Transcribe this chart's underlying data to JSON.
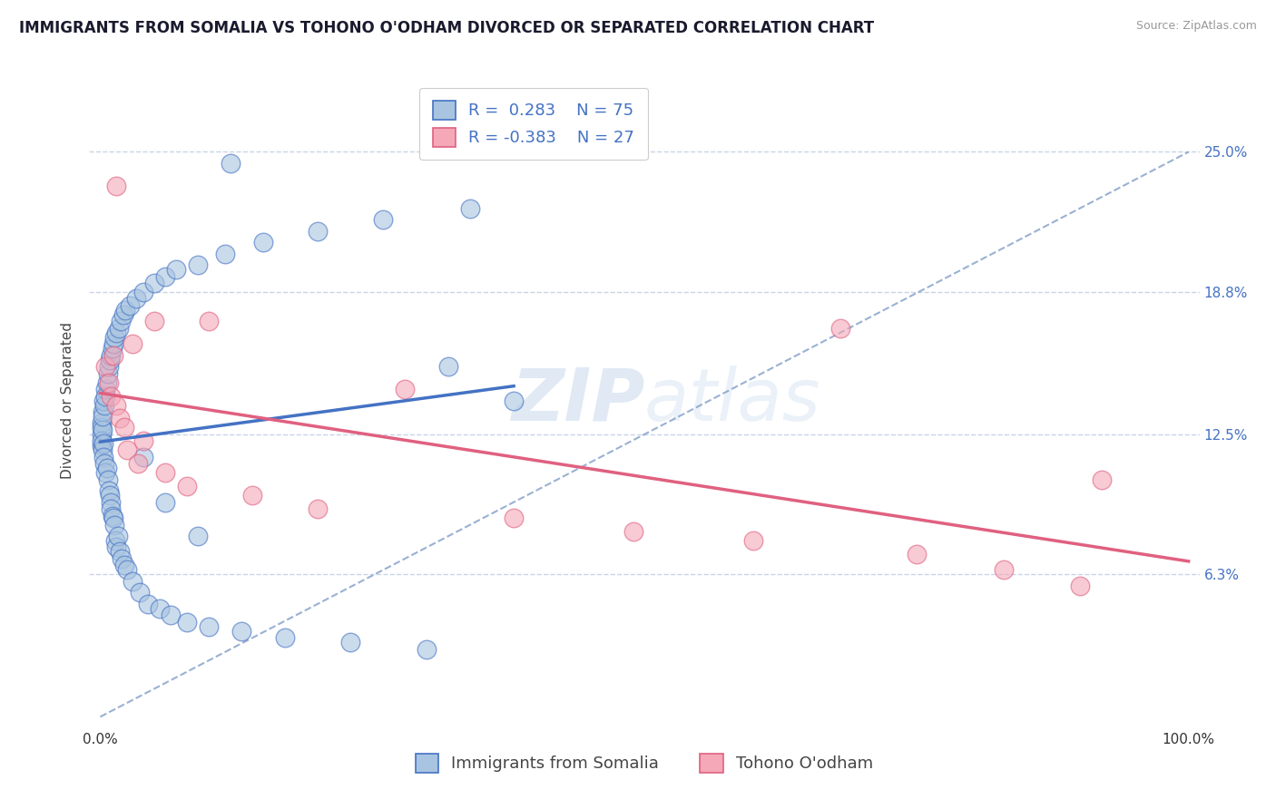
{
  "title": "IMMIGRANTS FROM SOMALIA VS TOHONO O'ODHAM DIVORCED OR SEPARATED CORRELATION CHART",
  "source_text": "Source: ZipAtlas.com",
  "ylabel": "Divorced or Separated",
  "ytick_labels": [
    "6.3%",
    "12.5%",
    "18.8%",
    "25.0%"
  ],
  "ytick_values": [
    0.063,
    0.125,
    0.188,
    0.25
  ],
  "xlim": [
    -0.01,
    1.01
  ],
  "ylim": [
    -0.005,
    0.285
  ],
  "legend_somalia_R": "0.283",
  "legend_somalia_N": "75",
  "legend_tohono_R": "-0.383",
  "legend_tohono_N": "27",
  "somalia_color": "#a8c4e0",
  "tohono_color": "#f4a8b8",
  "somalia_line_color": "#4472c4",
  "tohono_line_color": "#e06080",
  "ref_line_color": "#7090c0",
  "background_color": "#ffffff",
  "grid_color": "#c8d4e8",
  "somalia_scatter_x": [
    0.001,
    0.001,
    0.001,
    0.001,
    0.001,
    0.002,
    0.002,
    0.002,
    0.002,
    0.003,
    0.003,
    0.003,
    0.004,
    0.004,
    0.005,
    0.005,
    0.005,
    0.006,
    0.006,
    0.007,
    0.007,
    0.008,
    0.008,
    0.009,
    0.009,
    0.01,
    0.01,
    0.01,
    0.011,
    0.011,
    0.012,
    0.012,
    0.013,
    0.013,
    0.014,
    0.015,
    0.015,
    0.016,
    0.017,
    0.018,
    0.019,
    0.02,
    0.021,
    0.022,
    0.023,
    0.025,
    0.027,
    0.03,
    0.033,
    0.036,
    0.04,
    0.044,
    0.05,
    0.055,
    0.06,
    0.065,
    0.07,
    0.08,
    0.09,
    0.1,
    0.115,
    0.13,
    0.15,
    0.17,
    0.2,
    0.23,
    0.26,
    0.3,
    0.34,
    0.38,
    0.32,
    0.12,
    0.09,
    0.06,
    0.04
  ],
  "somalia_scatter_y": [
    0.125,
    0.13,
    0.12,
    0.128,
    0.122,
    0.135,
    0.118,
    0.127,
    0.133,
    0.121,
    0.14,
    0.115,
    0.138,
    0.112,
    0.145,
    0.108,
    0.142,
    0.11,
    0.148,
    0.105,
    0.152,
    0.1,
    0.155,
    0.098,
    0.158,
    0.095,
    0.16,
    0.092,
    0.163,
    0.089,
    0.165,
    0.088,
    0.168,
    0.085,
    0.078,
    0.075,
    0.17,
    0.08,
    0.172,
    0.073,
    0.175,
    0.07,
    0.178,
    0.067,
    0.18,
    0.065,
    0.182,
    0.06,
    0.185,
    0.055,
    0.188,
    0.05,
    0.192,
    0.048,
    0.195,
    0.045,
    0.198,
    0.042,
    0.2,
    0.04,
    0.205,
    0.038,
    0.21,
    0.035,
    0.215,
    0.033,
    0.22,
    0.03,
    0.225,
    0.14,
    0.155,
    0.245,
    0.08,
    0.095,
    0.115
  ],
  "tohono_scatter_x": [
    0.005,
    0.008,
    0.01,
    0.012,
    0.015,
    0.018,
    0.022,
    0.03,
    0.04,
    0.015,
    0.025,
    0.035,
    0.05,
    0.06,
    0.08,
    0.1,
    0.14,
    0.2,
    0.28,
    0.38,
    0.49,
    0.6,
    0.68,
    0.75,
    0.83,
    0.9,
    0.92
  ],
  "tohono_scatter_y": [
    0.155,
    0.148,
    0.142,
    0.16,
    0.138,
    0.132,
    0.128,
    0.165,
    0.122,
    0.235,
    0.118,
    0.112,
    0.175,
    0.108,
    0.102,
    0.175,
    0.098,
    0.092,
    0.145,
    0.088,
    0.082,
    0.078,
    0.172,
    0.072,
    0.065,
    0.058,
    0.105
  ],
  "watermark_zi": "ZIP",
  "watermark_atlas": "atlas",
  "title_fontsize": 12,
  "axis_label_fontsize": 11,
  "tick_fontsize": 11,
  "legend_fontsize": 13
}
